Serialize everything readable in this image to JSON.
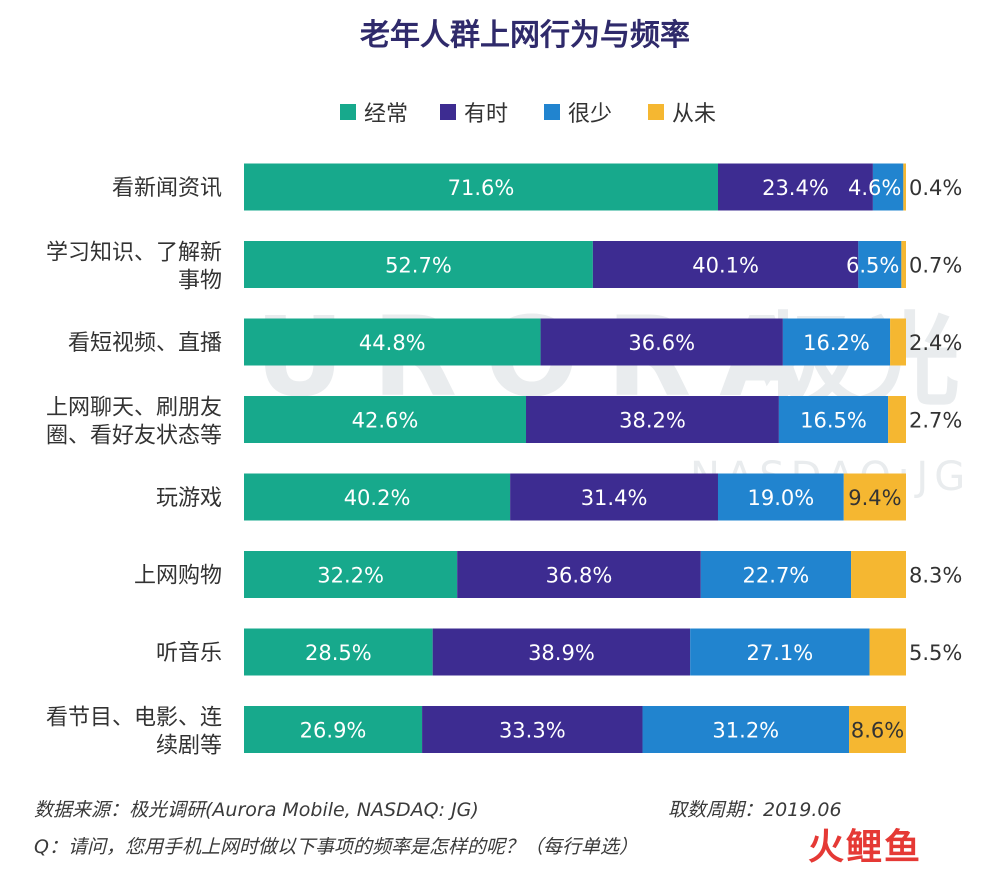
{
  "chart_data": {
    "type": "bar",
    "orientation": "horizontal-stacked",
    "title": "老年人群上网行为与频率",
    "legend": {
      "placement": "top",
      "items": [
        "经常",
        "有时",
        "很少",
        "从未"
      ]
    },
    "categories": [
      [
        "看新闻资讯"
      ],
      [
        "学习知识、了解新",
        "事物"
      ],
      [
        "看短视频、直播"
      ],
      [
        "上网聊天、刷朋友",
        "圈、看好友状态等"
      ],
      [
        "玩游戏"
      ],
      [
        "上网购物"
      ],
      [
        "听音乐"
      ],
      [
        "看节目、电影、连",
        "续剧等"
      ]
    ],
    "series": [
      {
        "name": "经常",
        "color": "#17a98c",
        "values": [
          71.6,
          52.7,
          44.8,
          42.6,
          40.2,
          32.2,
          28.5,
          26.9
        ],
        "labels": [
          "71.6%",
          "52.7%",
          "44.8%",
          "42.6%",
          "40.2%",
          "32.2%",
          "28.5%",
          "26.9%"
        ]
      },
      {
        "name": "有时",
        "color": "#3d2c91",
        "values": [
          23.4,
          40.1,
          36.6,
          38.2,
          31.4,
          36.8,
          38.9,
          33.3
        ],
        "labels": [
          "23.4%",
          "40.1%",
          "36.6%",
          "38.2%",
          "31.4%",
          "36.8%",
          "38.9%",
          "33.3%"
        ]
      },
      {
        "name": "很少",
        "color": "#2184cf",
        "values": [
          4.6,
          6.5,
          16.2,
          16.5,
          19.0,
          22.7,
          27.1,
          31.2
        ],
        "labels": [
          "4.6%",
          "6.5%",
          "16.2%",
          "16.5%",
          "19.0%",
          "22.7%",
          "27.1%",
          "31.2%"
        ]
      },
      {
        "name": "从未",
        "color": "#f5b731",
        "values": [
          0.4,
          0.7,
          2.4,
          2.7,
          9.4,
          8.3,
          5.5,
          8.6
        ],
        "labels": [
          "0.4%",
          "0.7%",
          "2.4%",
          "2.7%",
          "9.4%",
          "8.3%",
          "5.5%",
          "8.6%"
        ]
      }
    ],
    "xlim": [
      0,
      100
    ],
    "grid": false
  },
  "watermark": {
    "text": "URORA",
    "subtext": "NASDAQ:JG",
    "cn": "极光"
  },
  "footer": {
    "source": "数据来源：极光调研(Aurora Mobile, NASDAQ: JG)",
    "date": "取数周期：2019.06",
    "question": "Q：请问，您用手机上网时做以下事项的频率是怎样的呢？（每行单选）"
  },
  "brand": {
    "name": "火鲤鱼"
  }
}
